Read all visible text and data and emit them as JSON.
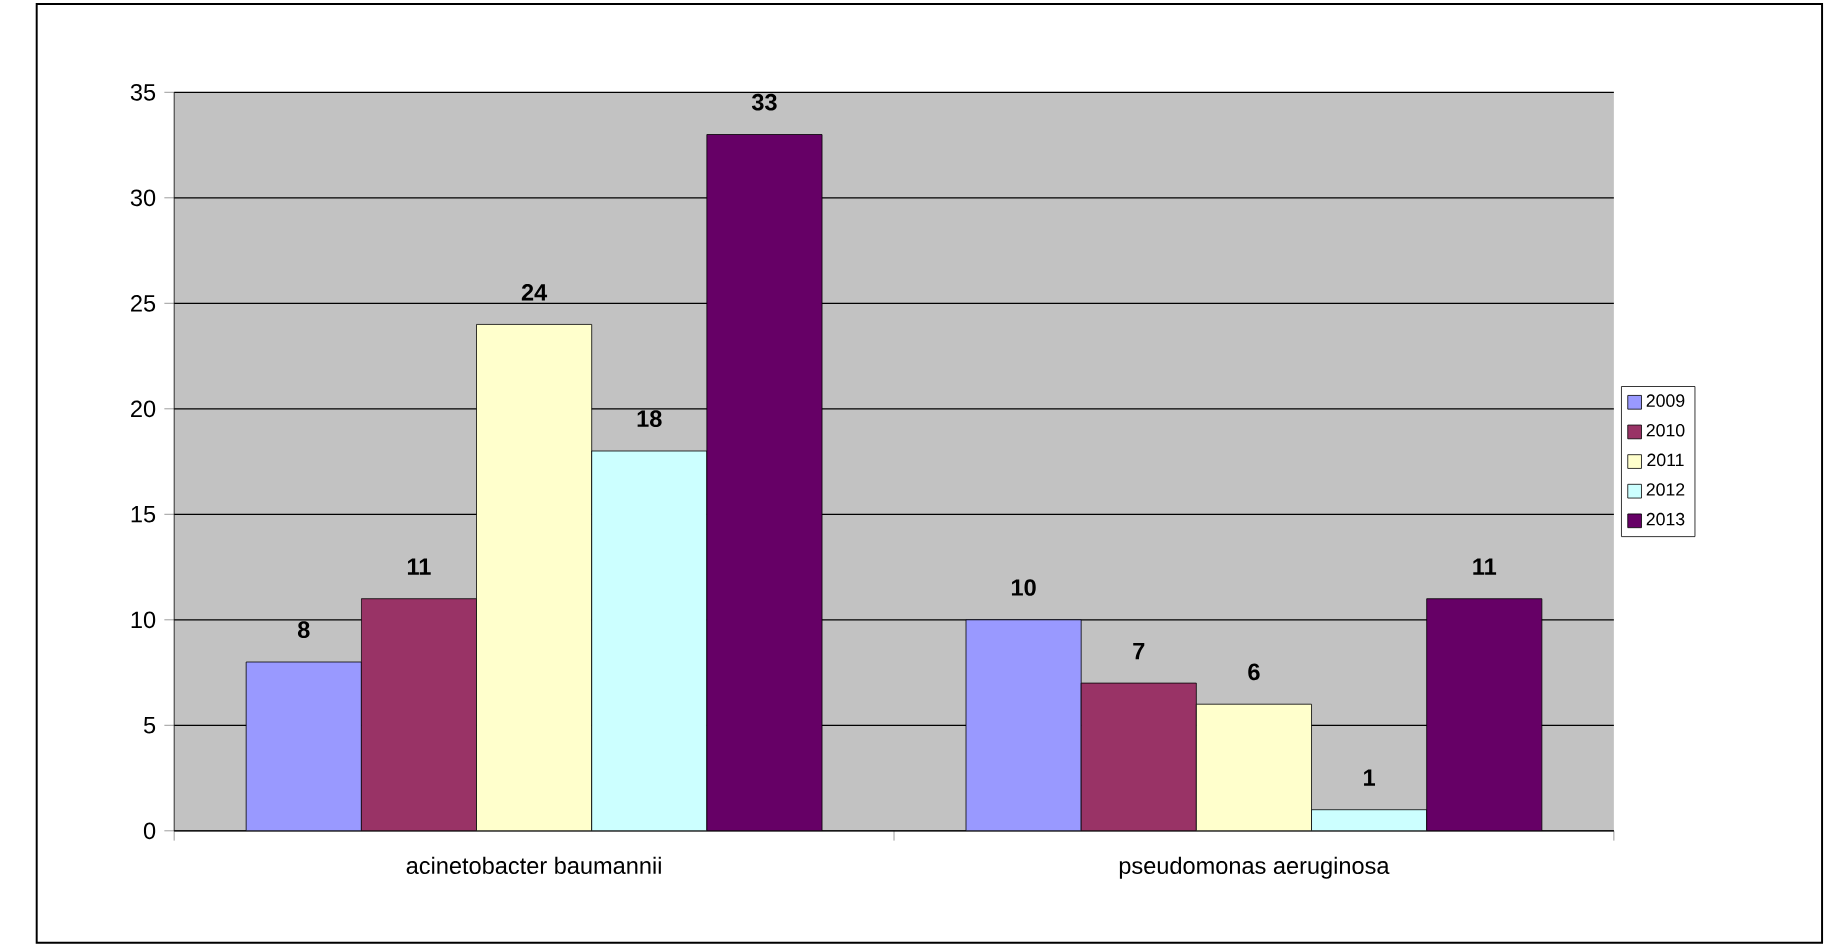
{
  "chart_data": {
    "type": "bar",
    "categories": [
      "acinetobacter baumannii",
      "pseudomonas aeruginosa"
    ],
    "series": [
      {
        "name": "2009",
        "color": "#9999ff",
        "values": [
          8,
          10
        ]
      },
      {
        "name": "2010",
        "color": "#993366",
        "values": [
          11,
          7
        ]
      },
      {
        "name": "2011",
        "color": "#ffffcc",
        "values": [
          24,
          6
        ]
      },
      {
        "name": "2012",
        "color": "#ccffff",
        "values": [
          18,
          1
        ]
      },
      {
        "name": "2013",
        "color": "#660066",
        "values": [
          33,
          11
        ]
      }
    ],
    "ylim": [
      0,
      35
    ],
    "yticks": [
      0,
      5,
      10,
      15,
      20,
      25,
      30,
      35
    ],
    "grid": "y",
    "legend": "right",
    "data_labels": true
  }
}
